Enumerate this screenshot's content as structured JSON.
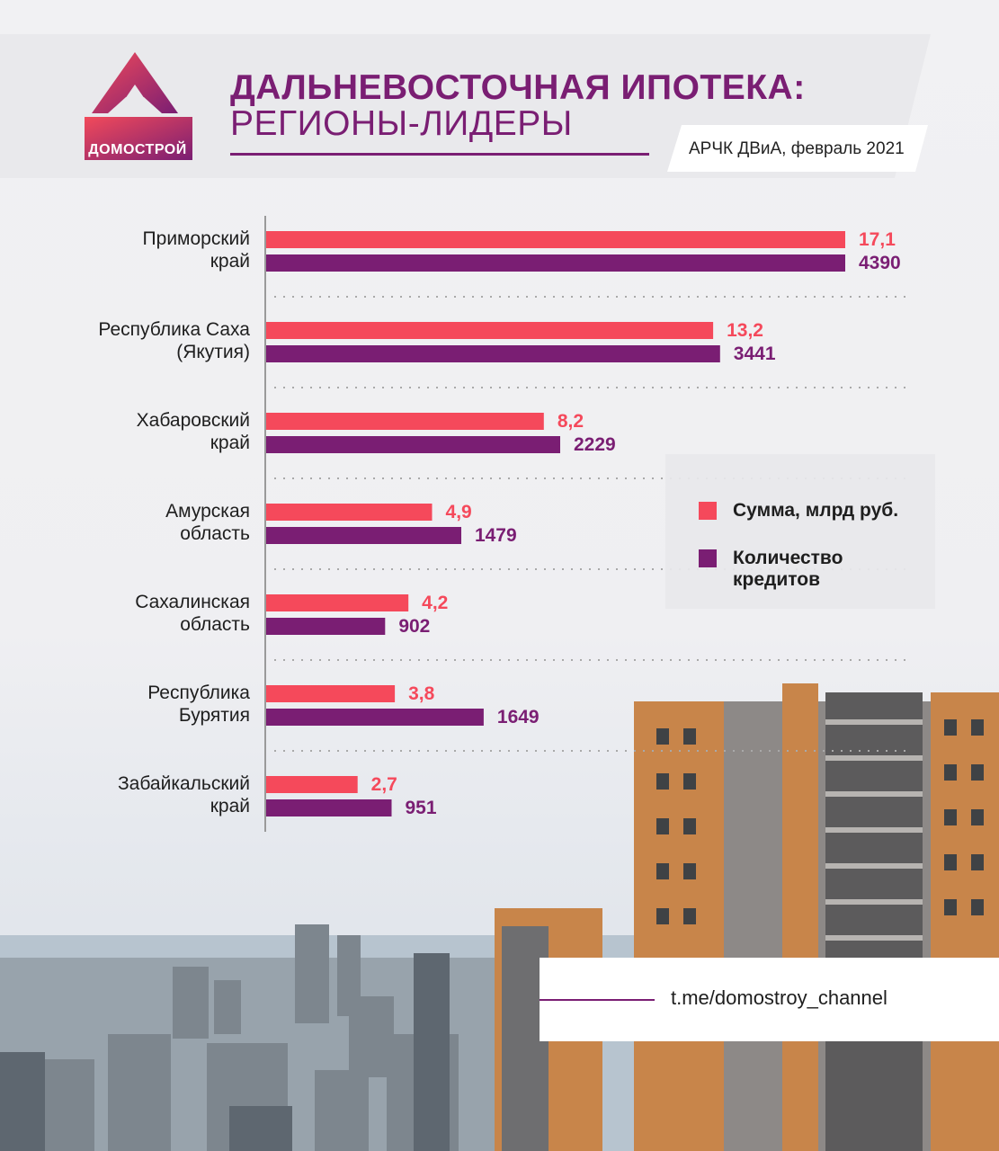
{
  "brand": {
    "logo_text": "ДОМОСТРОЙ"
  },
  "header": {
    "title_line1": "ДАЛЬНЕВОСТОЧНАЯ ИПОТЕКА:",
    "title_line2": "РЕГИОНЫ-ЛИДЕРЫ",
    "source": "АРЧК ДВиА, февраль 2021"
  },
  "footer": {
    "link": "t.me/domostroy_channel"
  },
  "colors": {
    "sum": "#f5495b",
    "count": "#7a1e73",
    "title": "#7a1e73",
    "axis": "#9a9a9a"
  },
  "chart_data": {
    "type": "bar",
    "orientation": "horizontal",
    "categories": [
      "Приморский край",
      "Республика Саха (Якутия)",
      "Хабаровский край",
      "Амурская область",
      "Сахалинская область",
      "Республика Бурятия",
      "Забайкальский край"
    ],
    "category_lines": [
      [
        "Приморский",
        "край"
      ],
      [
        "Республика Саха",
        "(Якутия)"
      ],
      [
        "Хабаровский",
        "край"
      ],
      [
        "Амурская",
        "область"
      ],
      [
        "Сахалинская",
        "область"
      ],
      [
        "Республика",
        "Бурятия"
      ],
      [
        "Забайкальский",
        "край"
      ]
    ],
    "series": [
      {
        "name": "Сумма, млрд руб.",
        "values": [
          17.1,
          13.2,
          8.2,
          4.9,
          4.2,
          3.8,
          2.7
        ],
        "labels": [
          "17,1",
          "13,2",
          "8,2",
          "4,9",
          "4,2",
          "3,8",
          "2,7"
        ]
      },
      {
        "name": "Количество кредитов",
        "name_lines": [
          "Количество",
          "кредитов"
        ],
        "values": [
          4390,
          3441,
          2229,
          1479,
          902,
          1649,
          951
        ],
        "labels": [
          "4390",
          "3441",
          "2229",
          "1479",
          "902",
          "1649",
          "951"
        ]
      }
    ],
    "legend_position": "right",
    "grid": false
  }
}
